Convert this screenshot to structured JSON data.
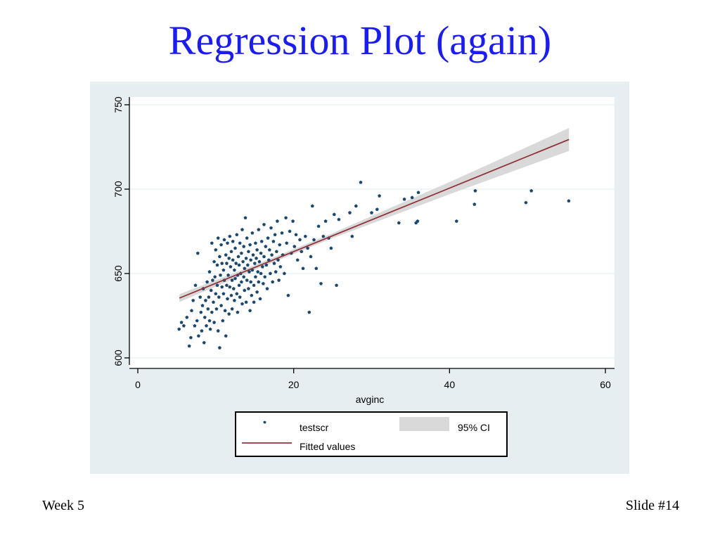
{
  "slide": {
    "title": "Regression Plot (again)",
    "footer_left": "Week 5",
    "footer_right": "Slide #14"
  },
  "colors": {
    "title": "#1a1aff",
    "panel": "#e6eef2",
    "points": "#1a476f",
    "fit": "#90353b",
    "ci": "#d9d9d9"
  },
  "chart_data": {
    "type": "scatter",
    "xlabel": "avginc",
    "ylabel": "",
    "xlim": [
      0,
      60
    ],
    "ylim": [
      600,
      750
    ],
    "xticks": [
      0,
      20,
      40,
      60
    ],
    "yticks": [
      600,
      650,
      700,
      750
    ],
    "grid": "horizontal",
    "legend_position": "bottom",
    "legend": {
      "testscr": "testscr",
      "ci": "95% CI",
      "fitted": "Fitted values"
    },
    "fit": {
      "x_start": 5.34,
      "x_end": 55.33,
      "intercept": 625.4,
      "slope": 1.88
    },
    "ci_band": {
      "x": [
        5.34,
        15,
        25,
        30,
        40,
        55.33
      ],
      "halfwidth": [
        2.3,
        1.4,
        1.5,
        2.2,
        3.6,
        6.8
      ]
    },
    "series": [
      {
        "name": "testscr",
        "points": [
          [
            5.3,
            617
          ],
          [
            5.6,
            621
          ],
          [
            5.9,
            619
          ],
          [
            6.3,
            624
          ],
          [
            6.6,
            607
          ],
          [
            6.8,
            612
          ],
          [
            6.9,
            628
          ],
          [
            7.1,
            634
          ],
          [
            7.3,
            619
          ],
          [
            7.4,
            643
          ],
          [
            7.6,
            622
          ],
          [
            7.7,
            662
          ],
          [
            7.8,
            613
          ],
          [
            8.0,
            636
          ],
          [
            8.1,
            627
          ],
          [
            8.2,
            616
          ],
          [
            8.3,
            631
          ],
          [
            8.4,
            641
          ],
          [
            8.5,
            609
          ],
          [
            8.6,
            624
          ],
          [
            8.7,
            634
          ],
          [
            8.8,
            619
          ],
          [
            8.9,
            645
          ],
          [
            9.0,
            629
          ],
          [
            9.1,
            636
          ],
          [
            9.2,
            651
          ],
          [
            9.2,
            622
          ],
          [
            9.3,
            617
          ],
          [
            9.4,
            640
          ],
          [
            9.5,
            668
          ],
          [
            9.5,
            627
          ],
          [
            9.6,
            646
          ],
          [
            9.7,
            633
          ],
          [
            9.8,
            657
          ],
          [
            9.8,
            621
          ],
          [
            9.9,
            648
          ],
          [
            10.0,
            638
          ],
          [
            10.0,
            664
          ],
          [
            10.1,
            629
          ],
          [
            10.2,
            655
          ],
          [
            10.2,
            643
          ],
          [
            10.3,
            671
          ],
          [
            10.3,
            616
          ],
          [
            10.4,
            636
          ],
          [
            10.5,
            660
          ],
          [
            10.5,
            606
          ],
          [
            10.6,
            649
          ],
          [
            10.7,
            631
          ],
          [
            10.7,
            667
          ],
          [
            10.8,
            642
          ],
          [
            10.8,
            656
          ],
          [
            10.9,
            622
          ],
          [
            11.0,
            652
          ],
          [
            11.0,
            638
          ],
          [
            11.1,
            670
          ],
          [
            11.1,
            646
          ],
          [
            11.2,
            628
          ],
          [
            11.3,
            661
          ],
          [
            11.3,
            613
          ],
          [
            11.4,
            643
          ],
          [
            11.4,
            656
          ],
          [
            11.5,
            635
          ],
          [
            11.5,
            668
          ],
          [
            11.6,
            649
          ],
          [
            11.7,
            626
          ],
          [
            11.7,
            659
          ],
          [
            11.8,
            642
          ],
          [
            11.8,
            672
          ],
          [
            11.9,
            654
          ],
          [
            12.0,
            637
          ],
          [
            12.0,
            663
          ],
          [
            12.1,
            646
          ],
          [
            12.1,
            629
          ],
          [
            12.2,
            658
          ],
          [
            12.2,
            669
          ],
          [
            12.3,
            641
          ],
          [
            12.4,
            652
          ],
          [
            12.4,
            634
          ],
          [
            12.5,
            665
          ],
          [
            12.5,
            647
          ],
          [
            12.6,
            656
          ],
          [
            12.7,
            638
          ],
          [
            12.7,
            673
          ],
          [
            12.8,
            649
          ],
          [
            12.8,
            627
          ],
          [
            12.9,
            660
          ],
          [
            13.0,
            643
          ],
          [
            13.0,
            655
          ],
          [
            13.1,
            668
          ],
          [
            13.1,
            636
          ],
          [
            13.2,
            650
          ],
          [
            13.3,
            662
          ],
          [
            13.3,
            645
          ],
          [
            13.4,
            676
          ],
          [
            13.4,
            632
          ],
          [
            13.5,
            657
          ],
          [
            13.6,
            648
          ],
          [
            13.6,
            666
          ],
          [
            13.7,
            640
          ],
          [
            13.7,
            653
          ],
          [
            13.8,
            683
          ],
          [
            13.9,
            659
          ],
          [
            13.9,
            633
          ],
          [
            14.0,
            646
          ],
          [
            14.0,
            671
          ],
          [
            14.1,
            655
          ],
          [
            14.2,
            641
          ],
          [
            14.2,
            663
          ],
          [
            14.3,
            651
          ],
          [
            14.4,
            628
          ],
          [
            14.4,
            667
          ],
          [
            14.5,
            645
          ],
          [
            14.5,
            658
          ],
          [
            14.6,
            637
          ],
          [
            14.7,
            674
          ],
          [
            14.7,
            652
          ],
          [
            14.8,
            661
          ],
          [
            14.9,
            643
          ],
          [
            14.9,
            633
          ],
          [
            15.0,
            656
          ],
          [
            15.1,
            668
          ],
          [
            15.1,
            648
          ],
          [
            15.2,
            659
          ],
          [
            15.3,
            639
          ],
          [
            15.3,
            664
          ],
          [
            15.4,
            651
          ],
          [
            15.5,
            645
          ],
          [
            15.5,
            676
          ],
          [
            15.6,
            657
          ],
          [
            15.7,
            635
          ],
          [
            15.8,
            662
          ],
          [
            15.8,
            650
          ],
          [
            15.9,
            669
          ],
          [
            16.0,
            654
          ],
          [
            16.1,
            644
          ],
          [
            16.2,
            679
          ],
          [
            16.2,
            660
          ],
          [
            16.3,
            648
          ],
          [
            16.4,
            666
          ],
          [
            16.5,
            655
          ],
          [
            16.6,
            641
          ],
          [
            16.7,
            671
          ],
          [
            16.8,
            658
          ],
          [
            16.9,
            664
          ],
          [
            17.0,
            650
          ],
          [
            17.1,
            677
          ],
          [
            17.2,
            661
          ],
          [
            17.3,
            645
          ],
          [
            17.4,
            669
          ],
          [
            17.5,
            656
          ],
          [
            17.6,
            673
          ],
          [
            17.7,
            651
          ],
          [
            17.8,
            663
          ],
          [
            17.9,
            681
          ],
          [
            18.0,
            658
          ],
          [
            18.1,
            646
          ],
          [
            18.2,
            667
          ],
          [
            18.3,
            654
          ],
          [
            18.5,
            674
          ],
          [
            18.6,
            661
          ],
          [
            18.8,
            650
          ],
          [
            19.0,
            683
          ],
          [
            19.1,
            668
          ],
          [
            19.3,
            637
          ],
          [
            19.5,
            675
          ],
          [
            19.7,
            662
          ],
          [
            19.9,
            681
          ],
          [
            20.1,
            666
          ],
          [
            20.3,
            673
          ],
          [
            20.5,
            658
          ],
          [
            20.8,
            670
          ],
          [
            21.0,
            663
          ],
          [
            21.2,
            653
          ],
          [
            21.5,
            672
          ],
          [
            21.8,
            665
          ],
          [
            22.0,
            627
          ],
          [
            22.2,
            660
          ],
          [
            22.4,
            690
          ],
          [
            22.6,
            670
          ],
          [
            22.9,
            653
          ],
          [
            23.2,
            678
          ],
          [
            23.5,
            644
          ],
          [
            23.8,
            672
          ],
          [
            24.1,
            681
          ],
          [
            24.5,
            671
          ],
          [
            24.8,
            665
          ],
          [
            25.2,
            685
          ],
          [
            25.5,
            643
          ],
          [
            25.8,
            682
          ],
          [
            27.2,
            686
          ],
          [
            27.5,
            672
          ],
          [
            28.0,
            690
          ],
          [
            28.6,
            704
          ],
          [
            30.0,
            686
          ],
          [
            30.7,
            688
          ],
          [
            31.0,
            696
          ],
          [
            33.5,
            680
          ],
          [
            34.2,
            694
          ],
          [
            35.2,
            695
          ],
          [
            35.7,
            680
          ],
          [
            35.9,
            681
          ],
          [
            36.0,
            698
          ],
          [
            40.9,
            681
          ],
          [
            43.2,
            691
          ],
          [
            43.3,
            699
          ],
          [
            49.8,
            692
          ],
          [
            50.5,
            699
          ],
          [
            55.3,
            693
          ]
        ]
      }
    ]
  }
}
